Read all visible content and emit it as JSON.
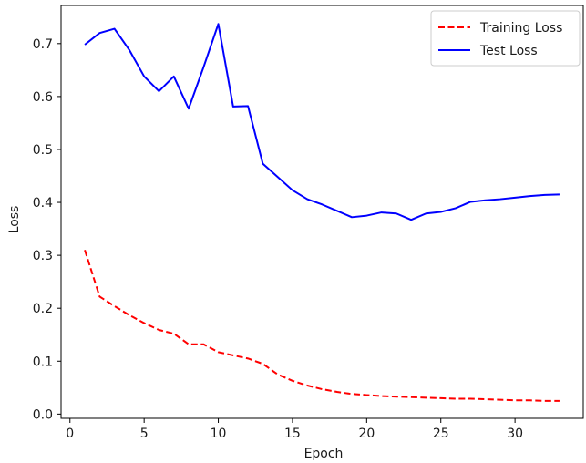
{
  "chart_data": {
    "type": "line",
    "title": "",
    "xlabel": "Epoch",
    "ylabel": "Loss",
    "xlim": [
      -0.6,
      34.6
    ],
    "ylim": [
      -0.008,
      0.772
    ],
    "xticks": [
      0,
      5,
      10,
      15,
      20,
      25,
      30
    ],
    "yticks": [
      0.0,
      0.1,
      0.2,
      0.3,
      0.4,
      0.5,
      0.6,
      0.7
    ],
    "xtick_labels": [
      "0",
      "5",
      "10",
      "15",
      "20",
      "25",
      "30"
    ],
    "ytick_labels": [
      "0.0",
      "0.1",
      "0.2",
      "0.3",
      "0.4",
      "0.5",
      "0.6",
      "0.7"
    ],
    "grid": false,
    "legend_position": "top-right",
    "x": [
      1,
      2,
      3,
      4,
      5,
      6,
      7,
      8,
      9,
      10,
      11,
      12,
      13,
      14,
      15,
      16,
      17,
      18,
      19,
      20,
      21,
      22,
      23,
      24,
      25,
      26,
      27,
      28,
      29,
      30,
      31,
      32,
      33
    ],
    "series": [
      {
        "name": "Training Loss",
        "color": "#ff0000",
        "style": "dashed",
        "values": [
          0.31,
          0.222,
          0.204,
          0.187,
          0.172,
          0.159,
          0.152,
          0.132,
          0.132,
          0.117,
          0.111,
          0.105,
          0.095,
          0.075,
          0.063,
          0.054,
          0.047,
          0.042,
          0.038,
          0.036,
          0.034,
          0.033,
          0.032,
          0.031,
          0.03,
          0.029,
          0.029,
          0.028,
          0.027,
          0.026,
          0.026,
          0.025,
          0.025
        ]
      },
      {
        "name": "Test Loss",
        "color": "#0000ff",
        "style": "solid",
        "values": [
          0.698,
          0.72,
          0.728,
          0.688,
          0.638,
          0.61,
          0.638,
          0.577,
          0.655,
          0.737,
          0.581,
          0.582,
          0.473,
          0.448,
          0.423,
          0.406,
          0.396,
          0.384,
          0.372,
          0.375,
          0.381,
          0.379,
          0.367,
          0.379,
          0.382,
          0.389,
          0.401,
          0.404,
          0.406,
          0.409,
          0.412,
          0.414,
          0.415
        ]
      }
    ]
  }
}
